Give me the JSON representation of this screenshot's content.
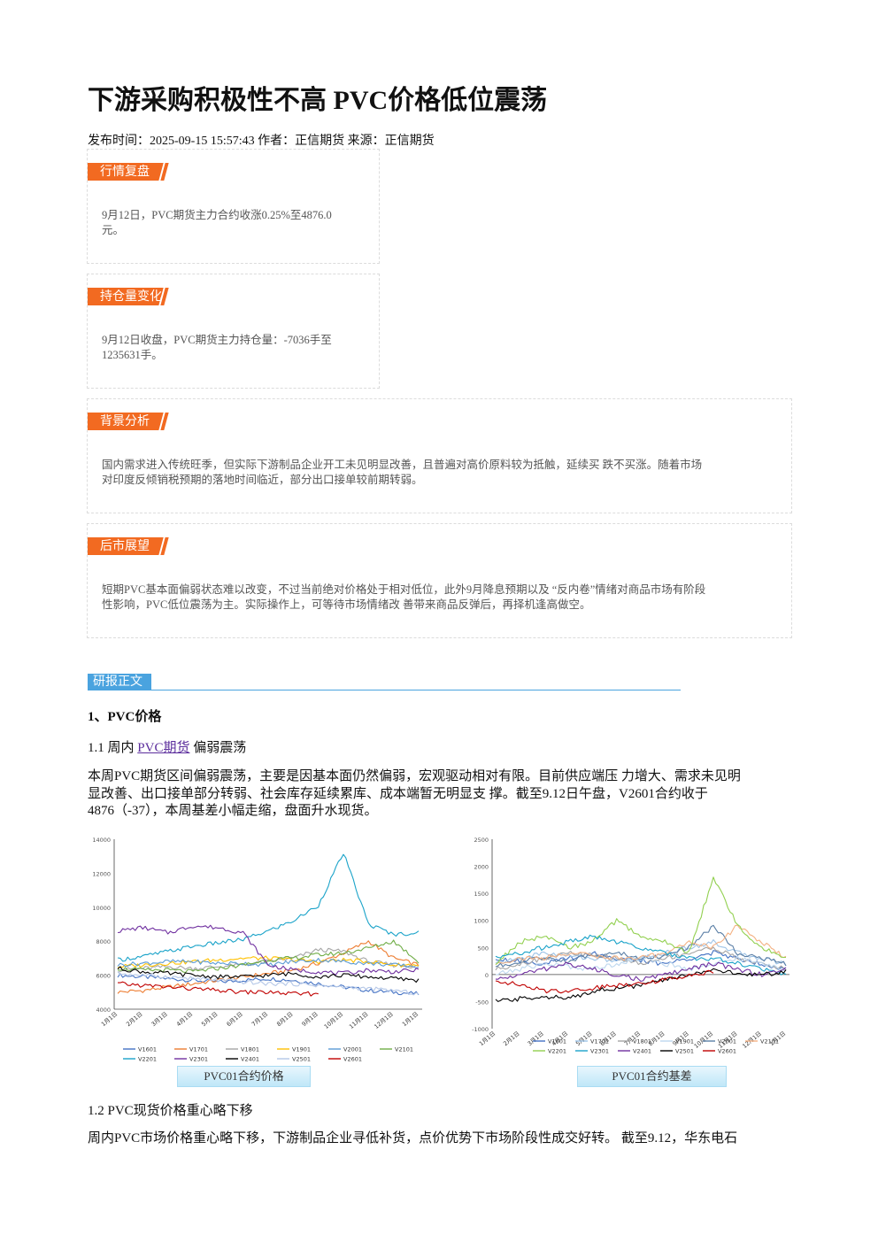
{
  "article": {
    "title": "下游采购积极性不高 PVC价格低位震荡",
    "meta": "发布时间：2025-09-15 15:57:43 作者：正信期货 来源：正信期货"
  },
  "sections": [
    {
      "tag": "行情复盘",
      "lines": [
        "9月12日，PVC期货主力合约收涨0.25%至4876.0",
        "元。"
      ]
    },
    {
      "tag": "持仓量变化",
      "lines": [
        "9月12日收盘，PVC期货主力持仓量：-7036手至",
        "1235631手。"
      ]
    },
    {
      "tag": "背景分析",
      "lines": [
        "国内需求进入传统旺季，但实际下游制品企业开工未见明显改善，且普遍对高价原料较为抵触，延续买 跌不买涨。随着市场",
        "对印度反倾销税预期的落地时间临近，部分出口接单较前期转弱。"
      ]
    },
    {
      "tag": "后市展望",
      "lines": [
        "短期PVC基本面偏弱状态难以改变，不过当前绝对价格处于相对低位，此外9月降息预期以及 “反内卷”情绪对商品市场有阶段",
        "性影响，PVC低位震荡为主。实际操作上，可等待市场情绪改 善带来商品反弹后，再择机逢高做空。"
      ]
    }
  ],
  "body": {
    "section_tag": "研报正文",
    "heading1": "1、PVC价格",
    "heading1_1_prefix": "1.1 周内",
    "heading1_1_link": "PVC期货",
    "heading1_1_suffix": "偏弱震荡",
    "para1": [
      "本周PVC期货区间偏弱震荡，主要是因基本面仍然偏弱，宏观驱动相对有限。目前供应端压 力增大、需求未见明",
      "显改善、出口接单部分转弱、社会库存延续累库、成本端暂无明显支 撑。截至9.12日午盘，V2601合约收于",
      "4876（-37），本周基差小幅走缩，盘面升水现货。"
    ],
    "heading1_2": "1.2 PVC现货价格重心略下移",
    "para2": [
      "周内PVC市场价格重心略下移，下游制品企业寻低补货，点价优势下市场阶段性成交好转。 截至9.12，华东电石"
    ]
  },
  "chart_data": [
    {
      "type": "line",
      "title": "PVC01合约价格",
      "ylim": [
        4000,
        14000
      ],
      "yticks": [
        "4000",
        "6000",
        "8000",
        "10000",
        "12000",
        "14000"
      ],
      "x": [
        "1/1",
        "2/1",
        "3/1",
        "4/1",
        "5/1",
        "6/1",
        "7/1",
        "8/1",
        "9/1",
        "10/1",
        "11/1",
        "12/1",
        "1/1"
      ],
      "xticks": [
        "1月1日",
        "2月1日",
        "3月1日",
        "4月1日",
        "5月1日",
        "6月1日",
        "7月1日",
        "8月1日",
        "9月1日",
        "10月1日",
        "11月1日",
        "12月1日",
        "1月1日"
      ],
      "series": [
        {
          "name": "V1601",
          "color": "#4472c4",
          "values": [
            6000,
            5900,
            5800,
            5700,
            5600,
            5700,
            5800,
            5700,
            5500,
            5300,
            5100,
            5000,
            4900
          ]
        },
        {
          "name": "V1701",
          "color": "#ed7d31",
          "values": [
            5000,
            5100,
            5300,
            5500,
            5700,
            5900,
            6100,
            6300,
            6700,
            7300,
            8000,
            7000,
            6600
          ]
        },
        {
          "name": "V1801",
          "color": "#a5a5a5",
          "values": [
            6300,
            6400,
            6500,
            6400,
            6500,
            6600,
            6800,
            7000,
            7500,
            7400,
            6800,
            6600,
            6500
          ]
        },
        {
          "name": "V1901",
          "color": "#ffc000",
          "values": [
            6500,
            6600,
            6700,
            6800,
            6900,
            7000,
            7000,
            6900,
            6800,
            6900,
            6800,
            6600,
            6600
          ]
        },
        {
          "name": "V2001",
          "color": "#5b9bd5",
          "values": [
            6600,
            6700,
            6800,
            6800,
            6700,
            6700,
            6600,
            6800,
            6900,
            6800,
            6700,
            6600,
            6500
          ]
        },
        {
          "name": "V2101",
          "color": "#70ad47",
          "values": [
            6400,
            6300,
            6300,
            6200,
            6400,
            6600,
            6900,
            7000,
            7200,
            7300,
            7600,
            8000,
            6800
          ]
        },
        {
          "name": "V2201",
          "color": "#1aa3c9",
          "values": [
            6900,
            7100,
            7400,
            7700,
            7900,
            8100,
            8600,
            9200,
            10100,
            13200,
            9000,
            8400,
            8500
          ]
        },
        {
          "name": "V2301",
          "color": "#7030a0",
          "values": [
            8600,
            8800,
            8500,
            8900,
            8800,
            8500,
            6600,
            6300,
            6200,
            6100,
            6300,
            6200,
            6300
          ]
        },
        {
          "name": "V2401",
          "color": "#000000",
          "values": [
            6400,
            6200,
            6100,
            6000,
            5900,
            5900,
            6000,
            6100,
            5900,
            6000,
            5900,
            5800,
            5700
          ]
        },
        {
          "name": "V2501",
          "color": "#b4c7e7",
          "values": [
            6100,
            6000,
            5900,
            5800,
            5700,
            5600,
            5500,
            5500,
            5400,
            5300,
            5200,
            5100,
            4900
          ]
        },
        {
          "name": "V2601",
          "color": "#c00000",
          "values": [
            5500,
            5400,
            5300,
            5200,
            5100,
            5000,
            5000,
            4900,
            4900,
            null,
            null,
            null,
            null
          ]
        }
      ]
    },
    {
      "type": "line",
      "title": "PVC01合约基差",
      "ylim": [
        -1000,
        2500
      ],
      "yticks": [
        "-1000",
        "-500",
        "0",
        "500",
        "1000",
        "1500",
        "2000",
        "2500"
      ],
      "x": [
        "1/1",
        "2/1",
        "3/1",
        "4/1",
        "5/1",
        "6/1",
        "7/1",
        "8/1",
        "9/1",
        "10/1",
        "11/1",
        "12/1",
        "1/1"
      ],
      "xticks": [
        "1月1日",
        "2月1日",
        "3月1日",
        "4月1日",
        "5月1日",
        "6月1日",
        "7月1日",
        "8月1日",
        "9月1日",
        "10月1日",
        "11月1日",
        "12月1日",
        "1月1日"
      ],
      "series": [
        {
          "name": "V1601",
          "color": "#4472c4",
          "values": [
            300,
            250,
            200,
            300,
            400,
            300,
            250,
            200,
            300,
            400,
            300,
            200,
            100
          ]
        },
        {
          "name": "V1701",
          "color": "#9dc3e6",
          "values": [
            200,
            300,
            400,
            350,
            300,
            250,
            300,
            400,
            500,
            600,
            400,
            300,
            200
          ]
        },
        {
          "name": "V1801",
          "color": "#a5a5a5",
          "values": [
            100,
            200,
            300,
            400,
            350,
            300,
            200,
            300,
            400,
            500,
            300,
            200,
            100
          ]
        },
        {
          "name": "V1901",
          "color": "#bdd7ee",
          "values": [
            0,
            100,
            200,
            150,
            100,
            200,
            300,
            200,
            100,
            200,
            300,
            200,
            100
          ]
        },
        {
          "name": "V2001",
          "color": "#5b7fa6",
          "values": [
            150,
            250,
            300,
            250,
            350,
            400,
            300,
            350,
            500,
            900,
            400,
            300,
            200
          ]
        },
        {
          "name": "V2101",
          "color": "#f4b183",
          "values": [
            200,
            300,
            300,
            400,
            350,
            300,
            300,
            400,
            600,
            500,
            900,
            600,
            300
          ]
        },
        {
          "name": "V2201",
          "color": "#92d050",
          "values": [
            200,
            600,
            700,
            500,
            600,
            1000,
            700,
            600,
            400,
            1800,
            900,
            500,
            300
          ]
        },
        {
          "name": "V2301",
          "color": "#1aa3c9",
          "values": [
            300,
            400,
            500,
            600,
            700,
            600,
            500,
            400,
            300,
            300,
            200,
            100,
            0
          ]
        },
        {
          "name": "V2401",
          "color": "#7030a0",
          "values": [
            -100,
            0,
            100,
            200,
            100,
            0,
            -100,
            0,
            100,
            200,
            100,
            0,
            100
          ]
        },
        {
          "name": "V2501",
          "color": "#000000",
          "values": [
            -500,
            -450,
            -400,
            -450,
            -300,
            -250,
            -200,
            -100,
            0,
            100,
            0,
            0,
            50
          ]
        },
        {
          "name": "V2601",
          "color": "#c00000",
          "values": [
            -100,
            -200,
            -300,
            -300,
            -250,
            -200,
            -150,
            -100,
            0,
            50,
            null,
            null,
            null
          ]
        }
      ]
    }
  ]
}
